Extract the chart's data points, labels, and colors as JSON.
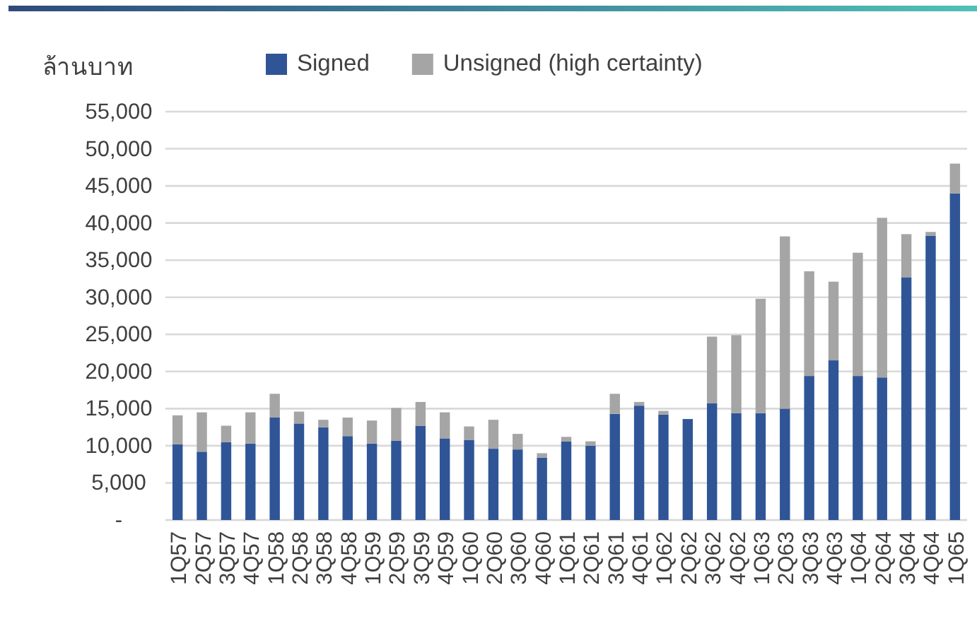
{
  "chart_data": {
    "type": "bar",
    "stacked": true,
    "ylabel": "ล้านบาท",
    "legend": "top",
    "grid": "y",
    "categories": [
      "1Q57",
      "2Q57",
      "3Q57",
      "4Q57",
      "1Q58",
      "2Q58",
      "3Q58",
      "4Q58",
      "1Q59",
      "2Q59",
      "3Q59",
      "4Q59",
      "1Q60",
      "2Q60",
      "3Q60",
      "4Q60",
      "1Q61",
      "2Q61",
      "3Q61",
      "4Q61",
      "1Q62",
      "2Q62",
      "3Q62",
      "4Q62",
      "1Q63",
      "2Q63",
      "3Q63",
      "4Q63",
      "1Q64",
      "2Q64",
      "3Q64",
      "4Q64",
      "1Q65"
    ],
    "ylim": [
      0,
      55000
    ],
    "yticks": [
      {
        "value": 0,
        "label": "-"
      },
      {
        "value": 5000,
        "label": "5,000"
      },
      {
        "value": 10000,
        "label": "10,000"
      },
      {
        "value": 15000,
        "label": "15,000"
      },
      {
        "value": 20000,
        "label": "20,000"
      },
      {
        "value": 25000,
        "label": "25,000"
      },
      {
        "value": 30000,
        "label": "30,000"
      },
      {
        "value": 35000,
        "label": "35,000"
      },
      {
        "value": 40000,
        "label": "40,000"
      },
      {
        "value": 45000,
        "label": "45,000"
      },
      {
        "value": 50000,
        "label": "50,000"
      },
      {
        "value": 55000,
        "label": "55,000"
      }
    ],
    "series": [
      {
        "name": "Signed",
        "color": "#2f5597",
        "values": [
          10200,
          9200,
          10500,
          10300,
          13800,
          13000,
          12500,
          11300,
          10300,
          10700,
          12700,
          11000,
          10800,
          9600,
          9500,
          8400,
          10600,
          10000,
          14300,
          15400,
          14200,
          13600,
          15700,
          14400,
          14400,
          15000,
          19400,
          21500,
          19400,
          19200,
          32700,
          38300,
          44000
        ]
      },
      {
        "name": "Unsigned (high certainty)",
        "color": "#a5a5a5",
        "values": [
          3900,
          5300,
          2200,
          4200,
          3200,
          1600,
          1000,
          2500,
          3100,
          4400,
          3200,
          3500,
          1800,
          3900,
          2100,
          600,
          600,
          600,
          2700,
          500,
          500,
          0,
          9000,
          10500,
          15400,
          23200,
          14100,
          10600,
          16600,
          21500,
          5800,
          500,
          4000
        ]
      }
    ]
  }
}
